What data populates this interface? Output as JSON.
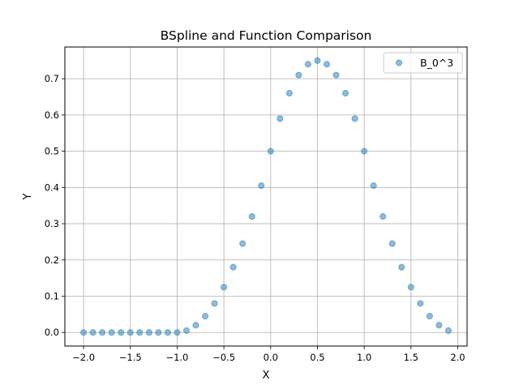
{
  "chart_data": {
    "type": "scatter",
    "title": "BSpline and Function Comparison",
    "xlabel": "X",
    "ylabel": "Y",
    "xlim": [
      -2.2,
      2.1
    ],
    "ylim": [
      -0.0375,
      0.7875
    ],
    "xticks": [
      -2.0,
      -1.5,
      -1.0,
      -0.5,
      0.0,
      0.5,
      1.0,
      1.5,
      2.0
    ],
    "xtick_labels": [
      "−2.0",
      "−1.5",
      "−1.0",
      "−0.5",
      "0.0",
      "0.5",
      "1.0",
      "1.5",
      "2.0"
    ],
    "yticks": [
      0.0,
      0.1,
      0.2,
      0.3,
      0.4,
      0.5,
      0.6,
      0.7
    ],
    "ytick_labels": [
      "0.0",
      "0.1",
      "0.2",
      "0.3",
      "0.4",
      "0.5",
      "0.6",
      "0.7"
    ],
    "grid": true,
    "legend": {
      "position": "top-right",
      "entries": [
        "B_0^3"
      ]
    },
    "series": [
      {
        "name": "B_0^3",
        "color": "#1f77b4",
        "alpha": 0.5,
        "x": [
          -2.0,
          -1.9,
          -1.8,
          -1.7,
          -1.6,
          -1.5,
          -1.4,
          -1.3,
          -1.2,
          -1.1,
          -1.0,
          -0.9,
          -0.8,
          -0.7,
          -0.6,
          -0.5,
          -0.4,
          -0.3,
          -0.2,
          -0.1,
          0.0,
          0.1,
          0.2,
          0.3,
          0.4,
          0.5,
          0.6,
          0.7,
          0.8,
          0.9,
          1.0,
          1.1,
          1.2,
          1.3,
          1.4,
          1.5,
          1.6,
          1.7,
          1.8,
          1.9
        ],
        "y": [
          0.0,
          0.0,
          0.0,
          0.0,
          0.0,
          0.0,
          0.0,
          0.0,
          0.0,
          0.0,
          0.0,
          0.005,
          0.02,
          0.045,
          0.08,
          0.125,
          0.18,
          0.245,
          0.32,
          0.405,
          0.5,
          0.59,
          0.66,
          0.71,
          0.74,
          0.75,
          0.74,
          0.71,
          0.66,
          0.59,
          0.5,
          0.405,
          0.32,
          0.245,
          0.18,
          0.125,
          0.08,
          0.045,
          0.02,
          0.005
        ]
      }
    ]
  }
}
